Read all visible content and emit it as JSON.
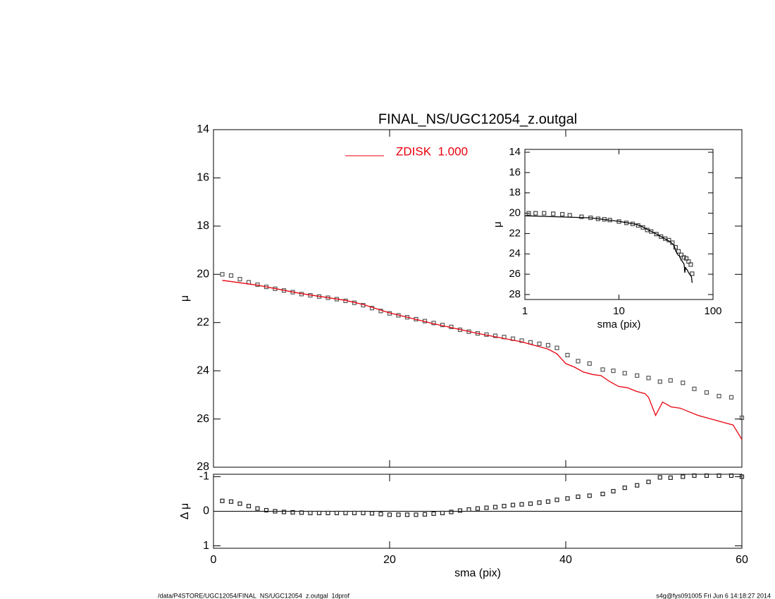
{
  "chart_data": [
    {
      "type": "line",
      "title": "FINAL_NS/UGC12054_z.outgal",
      "y_label": "μ",
      "xlim": [
        0,
        60
      ],
      "ylim": [
        14,
        28
      ],
      "yticks": [
        14,
        16,
        18,
        20,
        22,
        24,
        26,
        28
      ],
      "xticks": [
        0,
        20,
        40,
        60
      ],
      "show_xtick_labels": false,
      "legend": "top-left",
      "series": [
        {
          "marker": "square",
          "color": "#555555",
          "x": [
            1,
            2,
            3,
            4,
            5,
            6,
            7,
            8,
            9,
            10,
            11,
            12,
            13,
            14,
            15,
            16,
            17,
            18,
            19,
            20,
            21,
            22,
            23,
            24,
            25,
            26,
            27,
            28,
            29,
            30,
            31,
            32,
            33,
            34,
            35,
            36,
            37,
            38,
            39,
            40.2,
            41.4,
            42.7,
            44.2,
            45.4,
            46.7,
            48.1,
            49.4,
            50.7,
            51.9,
            53.3,
            54.6,
            56,
            57.4,
            58.8,
            60
          ],
          "values": [
            20.0,
            20.05,
            20.2,
            20.33,
            20.43,
            20.52,
            20.6,
            20.67,
            20.74,
            20.82,
            20.87,
            20.92,
            20.97,
            21.03,
            21.1,
            21.18,
            21.28,
            21.4,
            21.52,
            21.62,
            21.7,
            21.78,
            21.86,
            21.94,
            22.02,
            22.1,
            22.18,
            22.3,
            22.38,
            22.45,
            22.5,
            22.55,
            22.6,
            22.67,
            22.75,
            22.82,
            22.88,
            22.94,
            23.05,
            23.35,
            23.6,
            23.7,
            23.95,
            24.0,
            24.1,
            24.2,
            24.3,
            24.45,
            24.4,
            24.5,
            24.75,
            24.9,
            25.05,
            25.1,
            25.95
          ]
        },
        {
          "name": "ZDISK  1.000",
          "color": "#e8000b",
          "x": [
            1,
            5,
            10,
            15,
            17,
            20,
            25,
            30,
            35,
            38,
            39,
            40,
            41,
            42,
            43,
            44,
            45,
            46,
            47,
            48,
            49,
            49.4,
            50.2,
            51,
            52,
            53,
            54,
            55,
            56,
            57,
            58,
            59,
            60
          ],
          "values": [
            20.25,
            20.45,
            20.8,
            21.08,
            21.25,
            21.6,
            22.05,
            22.45,
            22.8,
            23.1,
            23.3,
            23.7,
            23.85,
            24.05,
            24.15,
            24.2,
            24.45,
            24.65,
            24.7,
            24.85,
            24.95,
            25.1,
            25.85,
            25.3,
            25.5,
            25.55,
            25.7,
            25.85,
            25.95,
            26.05,
            26.15,
            26.25,
            26.85
          ]
        }
      ]
    },
    {
      "type": "scatter",
      "y_label": "Δ μ",
      "x_label": "sma (pix)",
      "xlim": [
        0,
        60
      ],
      "ylim": [
        -1.07,
        1.07
      ],
      "yticks": [
        -1,
        0,
        1
      ],
      "xticks": [
        0,
        20,
        40,
        60
      ],
      "reference_line": 0,
      "series": [
        {
          "marker": "square",
          "color": "#222222",
          "x": [
            1,
            2,
            3,
            4,
            5,
            6,
            7,
            8,
            9,
            10,
            11,
            12,
            13,
            14,
            15,
            16,
            17,
            18,
            19,
            20,
            21,
            22,
            23,
            24,
            25,
            26,
            27,
            28,
            29,
            30,
            31,
            32,
            33,
            34,
            35,
            36,
            37,
            38,
            39,
            40.2,
            41.4,
            42.7,
            44.2,
            45.4,
            46.7,
            48.1,
            49.4,
            50.7,
            51.9,
            53.3,
            54.6,
            56,
            57.4,
            58.8,
            60
          ],
          "values": [
            -0.3,
            -0.28,
            -0.22,
            -0.15,
            -0.08,
            -0.03,
            0,
            0.02,
            0.03,
            0.04,
            0.05,
            0.05,
            0.05,
            0.05,
            0.05,
            0.05,
            0.05,
            0.06,
            0.08,
            0.1,
            0.1,
            0.1,
            0.1,
            0.09,
            0.07,
            0.05,
            0.02,
            -0.02,
            -0.05,
            -0.08,
            -0.1,
            -0.12,
            -0.15,
            -0.18,
            -0.2,
            -0.22,
            -0.25,
            -0.28,
            -0.33,
            -0.37,
            -0.42,
            -0.45,
            -0.5,
            -0.58,
            -0.68,
            -0.75,
            -0.85,
            -0.98,
            -0.97,
            -1.0,
            -1.03,
            -1.03,
            -1.03,
            -1.03,
            -1.0
          ]
        }
      ]
    },
    {
      "type": "line",
      "y_label": "μ",
      "x_label": "sma (pix)",
      "x_log": true,
      "xlim": [
        1,
        100
      ],
      "ylim": [
        13.72,
        28.49
      ],
      "xticks": [
        1,
        10,
        100
      ],
      "yticks": [
        14,
        16,
        18,
        20,
        22,
        24,
        26,
        28
      ],
      "series": [
        {
          "marker": "square",
          "color": "#444444",
          "x": [
            1.1,
            1.3,
            1.6,
            2,
            2.5,
            3,
            4,
            5,
            6,
            7,
            8,
            10,
            12,
            14,
            16,
            18,
            20,
            22,
            25,
            28,
            31,
            34,
            37,
            40,
            43,
            46,
            49,
            52,
            55,
            58,
            60
          ],
          "values": [
            20.0,
            20.0,
            20.0,
            20.05,
            20.1,
            20.2,
            20.35,
            20.45,
            20.55,
            20.6,
            20.67,
            20.82,
            20.95,
            21.05,
            21.2,
            21.4,
            21.65,
            21.8,
            22.05,
            22.3,
            22.5,
            22.65,
            22.9,
            23.35,
            23.75,
            24.1,
            24.35,
            24.45,
            24.75,
            25.05,
            25.95
          ]
        },
        {
          "color": "#000000",
          "x": [
            1,
            5,
            10,
            15,
            17,
            20,
            25,
            30,
            35,
            38,
            39,
            40,
            41,
            42,
            43,
            44,
            45,
            46,
            47,
            48,
            49,
            49.4,
            50.2,
            51,
            52,
            53,
            54,
            55,
            56,
            57,
            58,
            59,
            60
          ],
          "values": [
            20.25,
            20.45,
            20.8,
            21.08,
            21.25,
            21.6,
            22.05,
            22.45,
            22.8,
            23.1,
            23.3,
            23.7,
            23.85,
            24.05,
            24.15,
            24.2,
            24.45,
            24.65,
            24.7,
            24.85,
            24.95,
            25.1,
            25.85,
            25.3,
            25.5,
            25.55,
            25.7,
            25.85,
            25.95,
            26.05,
            26.15,
            26.25,
            26.85
          ]
        }
      ]
    }
  ],
  "footer": {
    "left": "/data/P4STORE/UGC12054/FINAL_NS/UGC12054_z.outgal_1dprof",
    "right": "s4g@fys091005  Fri Jun  6 14:18:27 2014"
  }
}
